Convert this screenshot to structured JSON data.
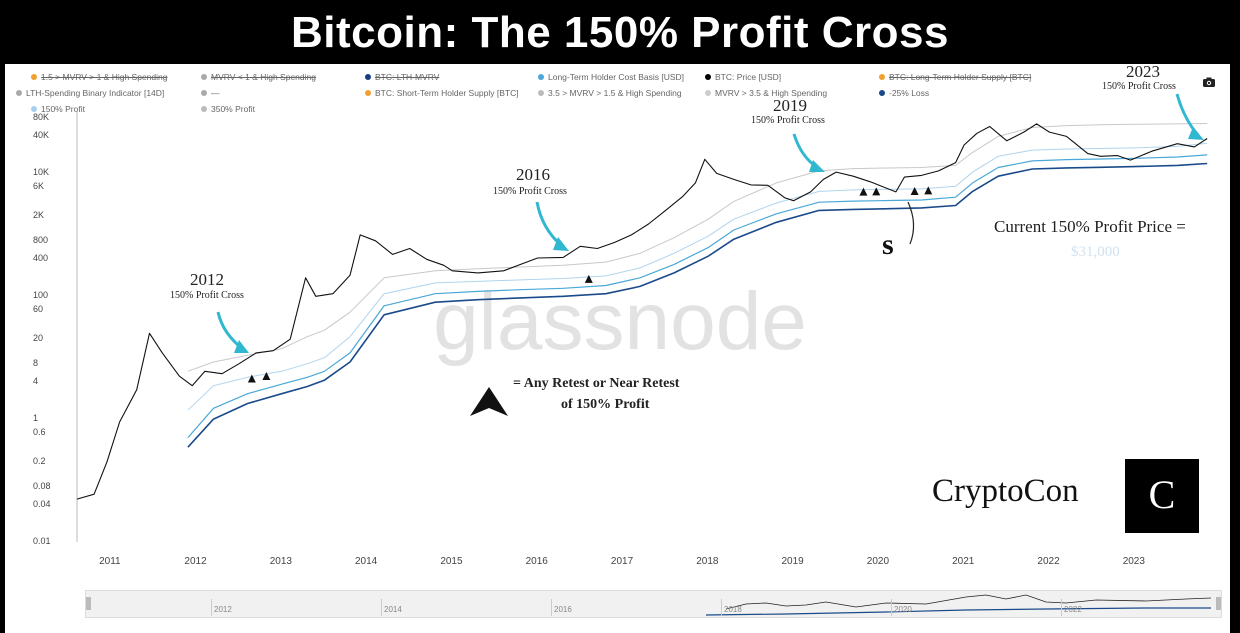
{
  "title": "Bitcoin: The 150% Profit Cross",
  "legend": [
    {
      "label": "1.5 > MVRV > 1 & High Spending",
      "color": "#f0a030",
      "struck": true
    },
    {
      "label": "MVRV < 1 & High Spending",
      "color": "#aaaaaa",
      "struck": true
    },
    {
      "label": "BTC: LTH-MVRV",
      "color": "#1a3a8a",
      "struck": true
    },
    {
      "label": "Long-Term Holder Cost Basis [USD]",
      "color": "#4aa8d8",
      "struck": false
    },
    {
      "label": "BTC: Price [USD]",
      "color": "#000000",
      "struck": false
    },
    {
      "label": "BTC: Long-Term Holder Supply [BTC]",
      "color": "#f0a030",
      "struck": true
    },
    {
      "label": "LTH-Spending Binary Indicator [14D]",
      "color": "#aaaaaa",
      "struck": false
    },
    {
      "label": "—",
      "color": "#aaaaaa",
      "struck": false
    },
    {
      "label": "BTC: Short-Term Holder Supply [BTC]",
      "color": "#f0a030",
      "struck": false
    },
    {
      "label": "3.5 > MVRV > 1.5 & High Spending",
      "color": "#bbbbbb",
      "struck": false
    },
    {
      "label": "MVRV > 3.5 & High Spending",
      "color": "#cccccc",
      "struck": false
    },
    {
      "label": "-25% Loss",
      "color": "#1a4a8a",
      "struck": false
    },
    {
      "label": "150% Profit",
      "color": "#a8d0ee",
      "struck": false
    },
    {
      "label": "350% Profit",
      "color": "#bbbbbb",
      "struck": false
    }
  ],
  "annotations": [
    {
      "year": "2012",
      "subtitle": "150% Profit Cross"
    },
    {
      "year": "2016",
      "subtitle": "150% Profit Cross"
    },
    {
      "year": "2019",
      "subtitle": "150% Profit Cross"
    },
    {
      "year": "2023",
      "subtitle": "150% Profit Cross"
    }
  ],
  "current_price_label": "Current 150% Profit Price =",
  "current_price_value": "$31,000",
  "retest_legend_line1": "= Any Retest or Near Retest",
  "retest_legend_line2": "of 150% Profit",
  "watermark": "glassnode",
  "brand": "CryptoCon",
  "brand_logo_text": "C",
  "navigator_ticks": [
    "2012",
    "2014",
    "2016",
    "2018",
    "2020",
    "2022"
  ],
  "chart_data": {
    "type": "line",
    "yscale": "log",
    "ylim": [
      0.01,
      100000
    ],
    "yticks": [
      "80K",
      "40K",
      "10K",
      "6K",
      "2K",
      "800",
      "400",
      "100",
      "60",
      "20",
      "8",
      "4",
      "1",
      "0.6",
      "0.2",
      "0.08",
      "0.04",
      "0.01"
    ],
    "ytick_values": [
      80000,
      40000,
      10000,
      6000,
      2000,
      800,
      400,
      100,
      60,
      20,
      8,
      4,
      1,
      0.6,
      0.2,
      0.08,
      0.04,
      0.01
    ],
    "xlim": [
      2010.6,
      2024.0
    ],
    "xticks": [
      "2011",
      "2012",
      "2013",
      "2014",
      "2015",
      "2016",
      "2017",
      "2018",
      "2019",
      "2020",
      "2021",
      "2022",
      "2023"
    ],
    "xtick_values": [
      2011,
      2012,
      2013,
      2014,
      2015,
      2016,
      2017,
      2018,
      2019,
      2020,
      2021,
      2022,
      2023
    ],
    "series": [
      {
        "name": "BTC: Price [USD]",
        "color": "#111111",
        "width": 1.1,
        "x": [
          2010.6,
          2010.8,
          2010.95,
          2011.1,
          2011.3,
          2011.45,
          2011.6,
          2011.8,
          2011.95,
          2012.1,
          2012.3,
          2012.5,
          2012.7,
          2012.9,
          2013.1,
          2013.28,
          2013.4,
          2013.6,
          2013.8,
          2013.92,
          2014.1,
          2014.3,
          2014.5,
          2014.7,
          2014.9,
          2015.0,
          2015.3,
          2015.6,
          2015.8,
          2016.0,
          2016.3,
          2016.5,
          2016.7,
          2016.9,
          2017.1,
          2017.3,
          2017.5,
          2017.7,
          2017.85,
          2017.96,
          2018.1,
          2018.3,
          2018.5,
          2018.7,
          2018.9,
          2019.0,
          2019.2,
          2019.35,
          2019.5,
          2019.7,
          2019.9,
          2020.2,
          2020.3,
          2020.5,
          2020.7,
          2020.9,
          2021.0,
          2021.15,
          2021.3,
          2021.5,
          2021.7,
          2021.85,
          2022.0,
          2022.2,
          2022.45,
          2022.6,
          2022.8,
          2022.95,
          2023.2,
          2023.5,
          2023.7,
          2023.85
        ],
        "y": [
          0.05,
          0.06,
          0.2,
          0.9,
          3,
          25,
          12,
          5,
          3.5,
          6,
          5.5,
          8,
          12,
          13,
          20,
          200,
          100,
          110,
          220,
          1000,
          800,
          480,
          600,
          400,
          320,
          260,
          240,
          260,
          330,
          420,
          430,
          650,
          600,
          750,
          1000,
          1500,
          2500,
          4200,
          7000,
          17000,
          10000,
          8000,
          6500,
          6400,
          4000,
          3600,
          5000,
          8000,
          10500,
          9000,
          7300,
          5000,
          8700,
          9300,
          11000,
          15000,
          29000,
          45000,
          58000,
          34000,
          47000,
          64000,
          47000,
          40000,
          21000,
          19000,
          19500,
          16500,
          23000,
          30500,
          27000,
          37000
        ]
      },
      {
        "name": "350% Profit",
        "color": "#c8c8c8",
        "width": 1.0,
        "x": [
          2011.9,
          2012.2,
          2012.6,
          2013.0,
          2013.3,
          2013.5,
          2013.8,
          2014.2,
          2014.8,
          2015.3,
          2015.8,
          2016.3,
          2016.8,
          2017.2,
          2017.6,
          2018.0,
          2018.3,
          2018.8,
          2019.3,
          2019.7,
          2020.0,
          2020.5,
          2020.9,
          2021.1,
          2021.4,
          2021.8,
          2022.2,
          2022.6,
          2023.0,
          2023.5,
          2023.85
        ],
        "y": [
          6,
          8.5,
          11,
          14,
          22,
          28,
          55,
          200,
          260,
          280,
          300,
          320,
          360,
          500,
          900,
          1800,
          3500,
          7000,
          11000,
          12000,
          12200,
          12500,
          13500,
          22000,
          40000,
          56000,
          60000,
          62000,
          63000,
          64000,
          65000
        ]
      },
      {
        "name": "150% Profit",
        "color": "#b0d4ee",
        "width": 1.0,
        "x": [
          2011.9,
          2012.2,
          2012.6,
          2013.0,
          2013.3,
          2013.5,
          2013.8,
          2014.2,
          2014.8,
          2015.3,
          2015.8,
          2016.3,
          2016.8,
          2017.2,
          2017.6,
          2018.0,
          2018.3,
          2018.8,
          2019.3,
          2019.7,
          2020.0,
          2020.5,
          2020.9,
          2021.1,
          2021.4,
          2021.8,
          2022.2,
          2022.6,
          2023.0,
          2023.5,
          2023.85
        ],
        "y": [
          1.4,
          3.5,
          4.8,
          6,
          8,
          10,
          22,
          110,
          165,
          175,
          185,
          195,
          215,
          290,
          500,
          950,
          1800,
          3300,
          5100,
          5400,
          5500,
          5600,
          6200,
          10500,
          19000,
          24000,
          25000,
          25500,
          26000,
          27500,
          31000
        ]
      },
      {
        "name": "Long-Term Holder Cost Basis [USD]",
        "color": "#4aa8d8",
        "width": 1.2,
        "x": [
          2011.9,
          2012.2,
          2012.6,
          2013.0,
          2013.3,
          2013.5,
          2013.8,
          2014.2,
          2014.8,
          2015.3,
          2015.8,
          2016.3,
          2016.8,
          2017.2,
          2017.6,
          2018.0,
          2018.3,
          2018.8,
          2019.3,
          2019.7,
          2020.0,
          2020.5,
          2020.9,
          2021.1,
          2021.4,
          2021.8,
          2022.2,
          2022.6,
          2023.0,
          2023.5,
          2023.85
        ],
        "y": [
          0.5,
          1.5,
          2.6,
          3.7,
          4.8,
          6,
          12,
          70,
          110,
          120,
          128,
          135,
          150,
          200,
          330,
          620,
          1200,
          2200,
          3400,
          3550,
          3600,
          3700,
          4100,
          7000,
          12500,
          16000,
          16800,
          17200,
          17600,
          18500,
          20000
        ]
      },
      {
        "name": "-25% Loss",
        "color": "#1a4a8a",
        "width": 1.6,
        "x": [
          2011.9,
          2012.2,
          2012.6,
          2013.0,
          2013.3,
          2013.5,
          2013.8,
          2014.2,
          2014.8,
          2015.3,
          2015.8,
          2016.3,
          2016.8,
          2017.2,
          2017.6,
          2018.0,
          2018.3,
          2018.8,
          2019.3,
          2019.7,
          2020.0,
          2020.5,
          2020.9,
          2021.1,
          2021.4,
          2021.8,
          2022.2,
          2022.6,
          2023.0,
          2023.5,
          2023.85
        ],
        "y": [
          0.35,
          1.0,
          1.8,
          2.6,
          3.4,
          4.3,
          8.5,
          50,
          80,
          88,
          94,
          100,
          110,
          145,
          240,
          450,
          850,
          1600,
          2500,
          2600,
          2650,
          2750,
          3000,
          5100,
          9000,
          11800,
          12300,
          12600,
          12900,
          13500,
          14500
        ]
      }
    ],
    "retest_markers_x": [
      2012.65,
      2012.82,
      2016.6,
      2019.82,
      2019.97,
      2020.42,
      2020.58
    ]
  }
}
